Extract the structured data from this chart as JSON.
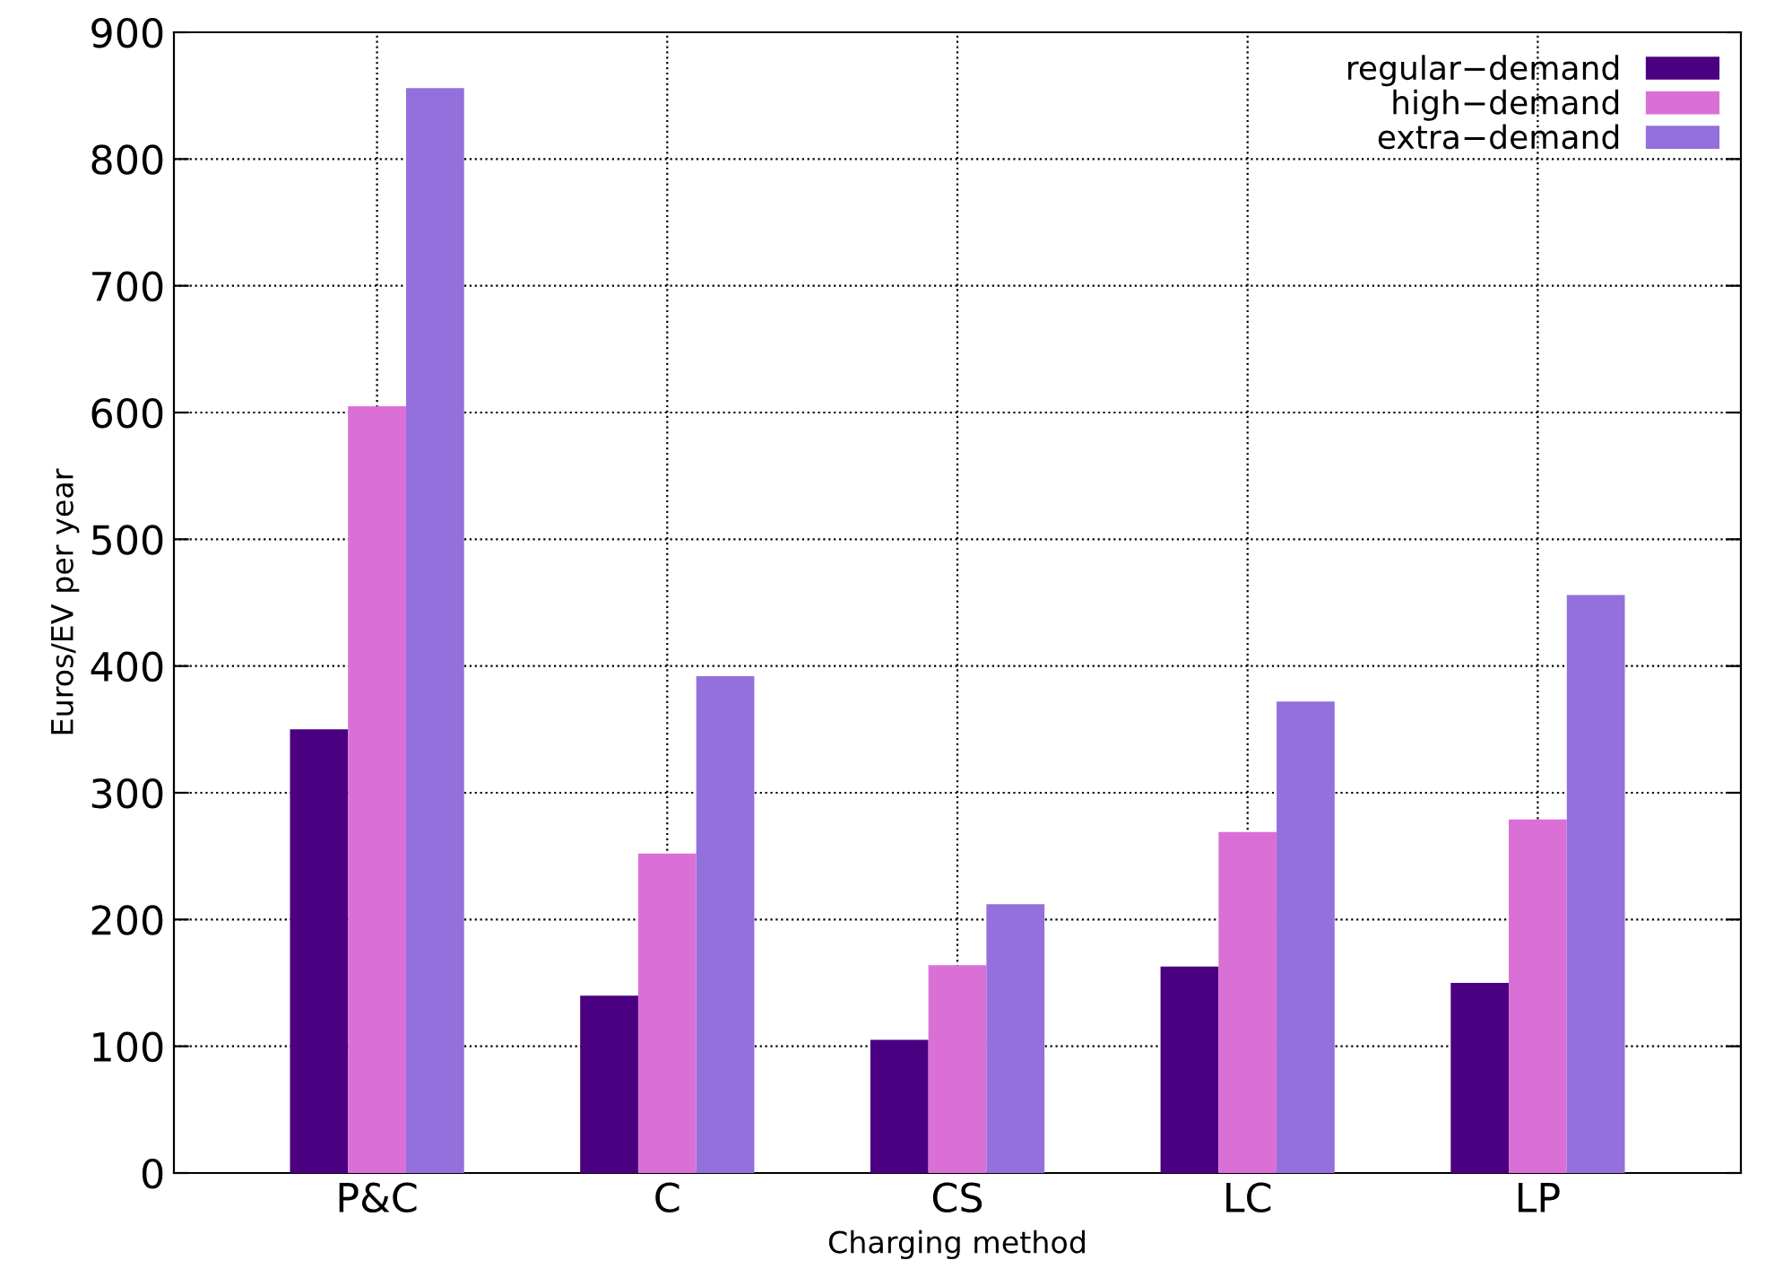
{
  "chart_data": {
    "type": "bar",
    "xlabel": "Charging method",
    "ylabel": "Euros/EV per year",
    "categories": [
      "P&C",
      "C",
      "CS",
      "LC",
      "LP"
    ],
    "series": [
      {
        "name": "regular−demand",
        "color": "#4b0082",
        "values": [
          350,
          140,
          105,
          163,
          150
        ]
      },
      {
        "name": "high−demand",
        "color": "#da70d6",
        "values": [
          605,
          252,
          164,
          269,
          279
        ]
      },
      {
        "name": "extra−demand",
        "color": "#9370db",
        "values": [
          856,
          392,
          212,
          372,
          456
        ]
      }
    ],
    "ylim": [
      0,
      900
    ],
    "yticks": [
      0,
      100,
      200,
      300,
      400,
      500,
      600,
      700,
      800,
      900
    ],
    "grid": true,
    "legend": "top right",
    "line_style": "dotted"
  }
}
